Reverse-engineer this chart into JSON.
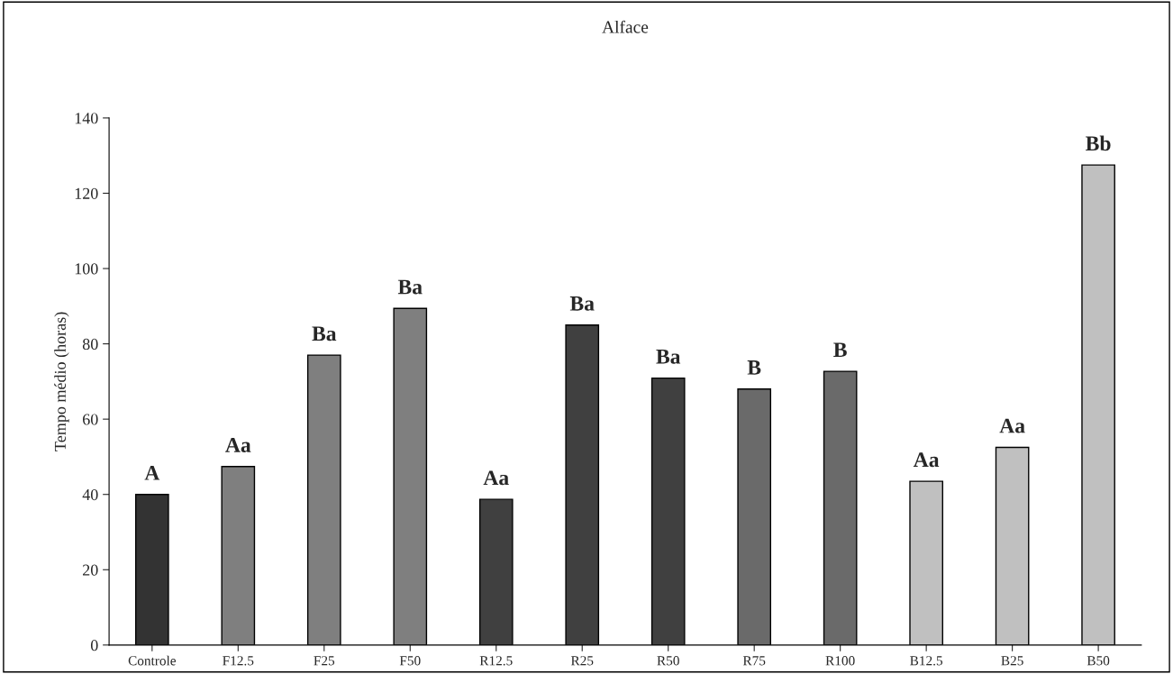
{
  "chart_data": {
    "type": "bar",
    "title": "Alface",
    "ylabel": "Tempo médio (horas)",
    "categories": [
      "Controle",
      "F12.5",
      "F25",
      "F50",
      "R12.5",
      "R25",
      "R50",
      "R75",
      "R100",
      "B12.5",
      "B25",
      "B50"
    ],
    "values": [
      40,
      47.4,
      77,
      89.4,
      38.7,
      85,
      70.9,
      68,
      72.7,
      43.5,
      52.5,
      127.5
    ],
    "colors": [
      "#333333",
      "#7f7f7f",
      "#7f7f7f",
      "#7f7f7f",
      "#404040",
      "#404040",
      "#404040",
      "#6a6a6a",
      "#6a6a6a",
      "#c0c0c0",
      "#c0c0c0",
      "#c0c0c0"
    ],
    "ylim": [
      0,
      140
    ],
    "yticks": [
      0,
      20,
      40,
      60,
      80,
      100,
      120,
      140
    ],
    "grid": false,
    "annotations": [
      {
        "text": "A",
        "x": "Controle",
        "y": 40
      },
      {
        "text": "Aa",
        "x": "F12.5",
        "y": 47.4
      },
      {
        "text": "Ba",
        "x": "F25",
        "y": 77
      },
      {
        "text": "Ba",
        "x": "F50",
        "y": 89.4
      },
      {
        "text": "Aa",
        "x": "R12.5",
        "y": 38.7
      },
      {
        "text": "Ba",
        "x": "R25",
        "y": 85
      },
      {
        "text": "Ba",
        "x": "R50",
        "y": 70.9
      },
      {
        "text": "B",
        "x": "R75",
        "y": 68
      },
      {
        "text": "B",
        "x": "R100",
        "y": 72.7
      },
      {
        "text": "Aa",
        "x": "B12.5",
        "y": 43.5
      },
      {
        "text": "Aa",
        "x": "B25",
        "y": 52.5
      },
      {
        "text": "Bb",
        "x": "B50",
        "y": 127.5
      }
    ]
  }
}
